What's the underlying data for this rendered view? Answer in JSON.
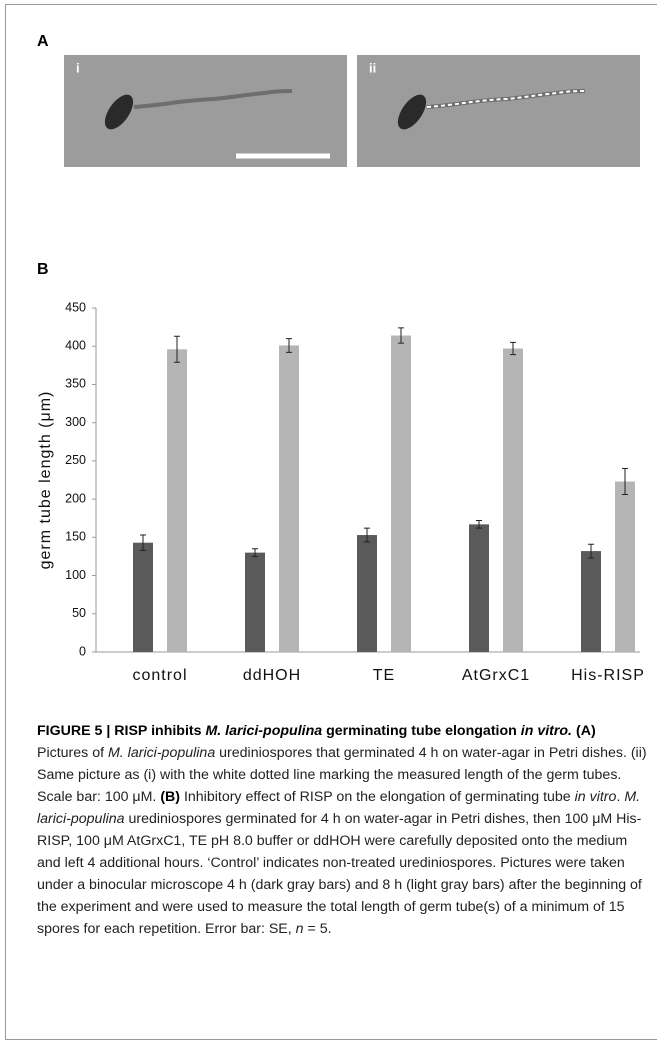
{
  "panels": {
    "a": {
      "label": "A",
      "images": [
        "i",
        "ii"
      ]
    },
    "b": {
      "label": "B"
    }
  },
  "chart_data": {
    "type": "bar",
    "ylabel": "germ tube length (μm)",
    "categories": [
      "control",
      "ddHOH",
      "TE",
      "AtGrxC1",
      "His-RISP"
    ],
    "series": [
      {
        "color": "#5a5a5a",
        "values": [
          143,
          130,
          153,
          167,
          132
        ],
        "errors": [
          10,
          5,
          9,
          5,
          9
        ]
      },
      {
        "color": "#b5b5b5",
        "values": [
          396,
          401,
          414,
          397,
          223
        ],
        "errors": [
          17,
          9,
          10,
          8,
          17
        ]
      }
    ],
    "ylim": [
      0,
      450
    ],
    "yticks": [
      0,
      50,
      100,
      150,
      200,
      250,
      300,
      350,
      400,
      450
    ],
    "grid": false
  },
  "caption": [
    "FIGURE 5 | RISP inhibits ",
    "M. larici-populina",
    " germinating tube elongation ",
    "in vitro.",
    " ",
    "(A)",
    " Pictures of ",
    "M. larici-populina",
    " urediniospores that germinated 4 h on water-agar in Petri dishes. (ii) Same picture as (i) with the white dotted line marking the measured length of the germ tubes. Scale bar: 100 μM. ",
    "(B)",
    " Inhibitory effect of RISP on the elongation of germinating tube ",
    "in vitro",
    ". ",
    "M. larici-populina",
    " urediniospores germinated for 4 h on water-agar in Petri dishes, then 100 μM His-RISP, 100 μM AtGrxC1, TE pH 8.0 buffer or ddHOH were carefully deposited onto the medium and left 4 additional hours. ‘Control’ indicates non-treated urediniospores. Pictures were taken under a binocular microscope 4 h (dark gray bars) and 8 h (light gray bars) after the beginning of the experiment and were used to measure the total length of germ tube(s) of a minimum of 15 spores for each repetition. Error bar: SE, ",
    "n",
    " = 5."
  ]
}
